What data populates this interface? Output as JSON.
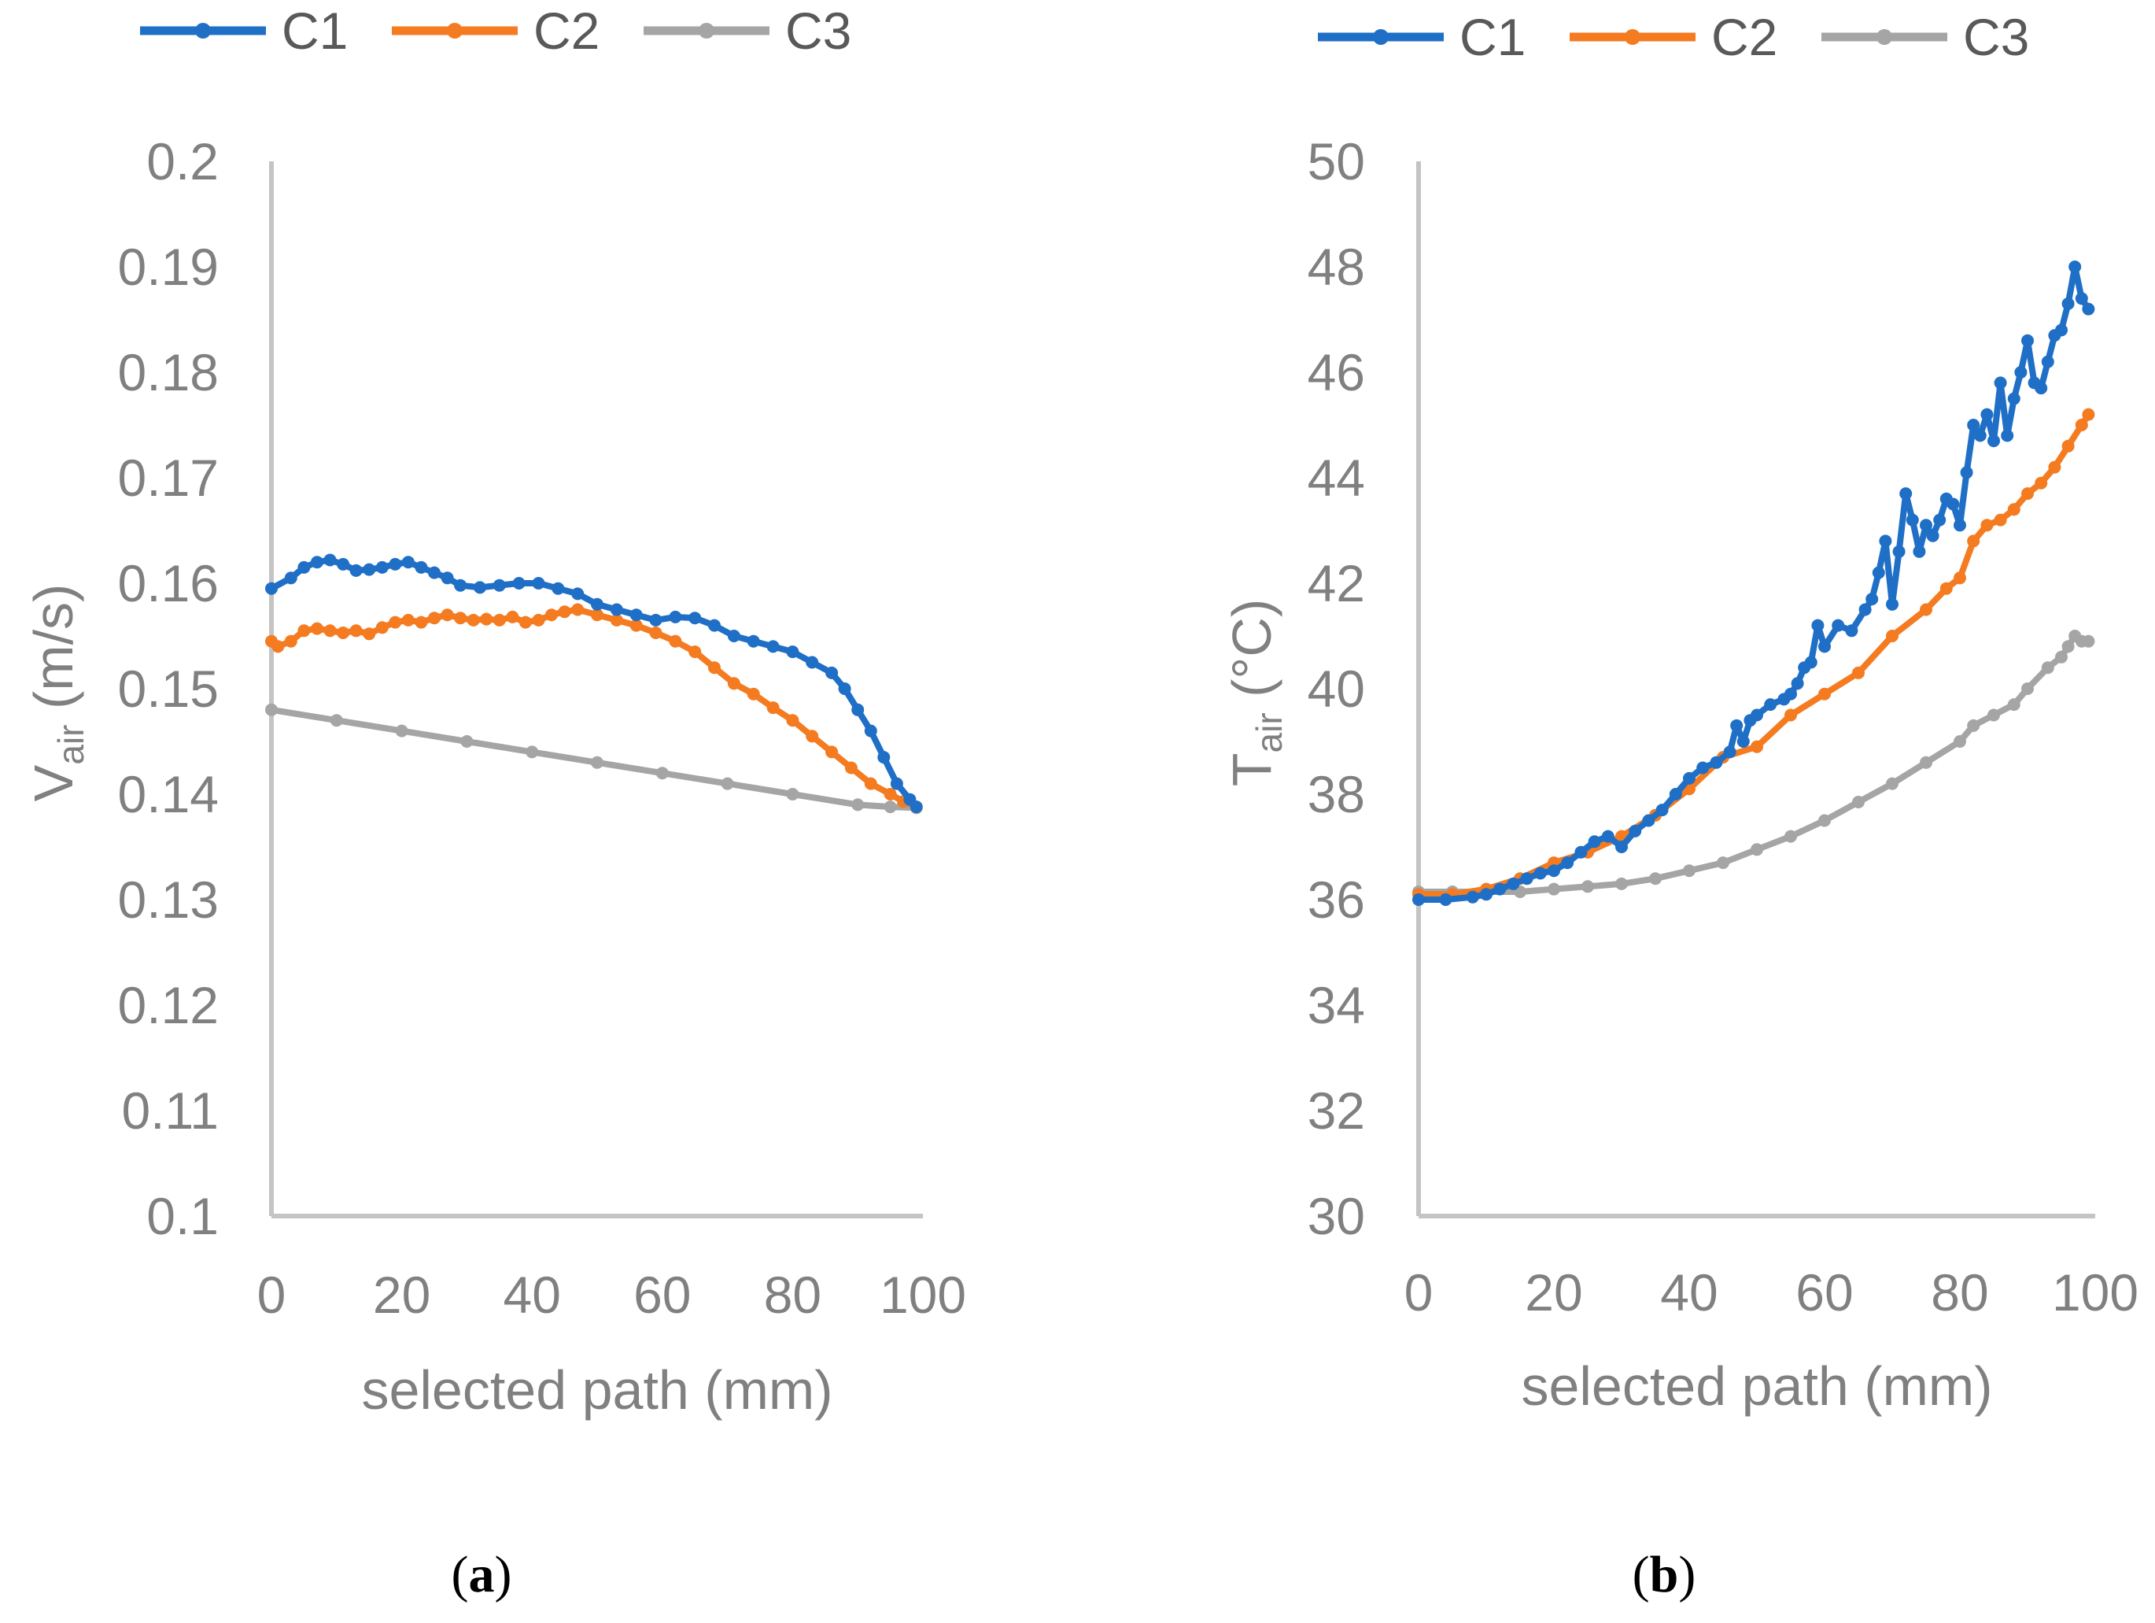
{
  "colors": {
    "C1": "#1f6fc6",
    "C2": "#f47b20",
    "C3": "#a5a5a5",
    "axis": "#c4c4c4",
    "text": "#808080"
  },
  "chart_data": [
    {
      "panel": "a",
      "type": "line",
      "caption": {
        "open": "(",
        "letter": "a",
        "close": ")"
      },
      "legend": [
        "C1",
        "C2",
        "C3"
      ],
      "xlabel": "selected path (mm)",
      "ylabel": {
        "main": "V",
        "sub": "air",
        "rest": " (m/s)"
      },
      "xlim": [
        0,
        100
      ],
      "ylim": [
        0.1,
        0.2
      ],
      "xticks": [
        "0",
        "20",
        "40",
        "60",
        "80",
        "100"
      ],
      "yticks": [
        "0.1",
        "0.11",
        "0.12",
        "0.13",
        "0.14",
        "0.15",
        "0.16",
        "0.17",
        "0.18",
        "0.19",
        "0.2"
      ],
      "series": [
        {
          "name": "C1",
          "x": [
            0,
            3,
            5,
            7,
            9,
            11,
            13,
            15,
            17,
            19,
            21,
            23,
            25,
            27,
            29,
            32,
            35,
            38,
            41,
            44,
            47,
            50,
            53,
            56,
            59,
            62,
            65,
            68,
            71,
            74,
            77,
            80,
            83,
            86,
            88,
            90,
            92,
            94,
            96,
            98,
            99
          ],
          "y": [
            0.1595,
            0.1605,
            0.1615,
            0.162,
            0.1622,
            0.1618,
            0.1612,
            0.1613,
            0.1615,
            0.1618,
            0.162,
            0.1615,
            0.161,
            0.1605,
            0.1598,
            0.1596,
            0.1598,
            0.16,
            0.16,
            0.1595,
            0.159,
            0.158,
            0.1575,
            0.157,
            0.1565,
            0.1568,
            0.1567,
            0.156,
            0.155,
            0.1545,
            0.154,
            0.1535,
            0.1525,
            0.1515,
            0.15,
            0.148,
            0.146,
            0.1435,
            0.141,
            0.1395,
            0.1388
          ]
        },
        {
          "name": "C2",
          "x": [
            0,
            1,
            3,
            5,
            7,
            9,
            11,
            13,
            15,
            17,
            19,
            21,
            23,
            25,
            27,
            29,
            31,
            33,
            35,
            37,
            39,
            41,
            43,
            45,
            47,
            50,
            53,
            56,
            59,
            62,
            65,
            68,
            71,
            74,
            77,
            80,
            83,
            86,
            89,
            92,
            95,
            97,
            99
          ],
          "y": [
            0.1545,
            0.154,
            0.1545,
            0.1555,
            0.1557,
            0.1555,
            0.1553,
            0.1555,
            0.1552,
            0.1558,
            0.1563,
            0.1565,
            0.1563,
            0.1567,
            0.157,
            0.1567,
            0.1565,
            0.1566,
            0.1565,
            0.1568,
            0.1563,
            0.1565,
            0.157,
            0.1573,
            0.1575,
            0.157,
            0.1565,
            0.156,
            0.1553,
            0.1545,
            0.1535,
            0.152,
            0.1505,
            0.1495,
            0.1482,
            0.147,
            0.1455,
            0.144,
            0.1425,
            0.141,
            0.14,
            0.1393,
            0.1388
          ]
        },
        {
          "name": "C3",
          "x": [
            0,
            10,
            20,
            30,
            40,
            50,
            60,
            70,
            80,
            90,
            95,
            99
          ],
          "y": [
            0.148,
            0.147,
            0.146,
            0.145,
            0.144,
            0.143,
            0.142,
            0.141,
            0.14,
            0.139,
            0.1388,
            0.1387
          ]
        }
      ]
    },
    {
      "panel": "b",
      "type": "line",
      "caption": {
        "open": "(",
        "letter": "b",
        "close": ")"
      },
      "legend": [
        "C1",
        "C2",
        "C3"
      ],
      "xlabel": "selected path (mm)",
      "ylabel": {
        "main": "T",
        "sub": "air",
        "rest": " (°C)"
      },
      "xlim": [
        0,
        100
      ],
      "ylim": [
        30,
        50
      ],
      "xticks": [
        "0",
        "20",
        "40",
        "60",
        "80",
        "100"
      ],
      "yticks": [
        "30",
        "32",
        "34",
        "36",
        "38",
        "40",
        "42",
        "44",
        "46",
        "48",
        "50"
      ],
      "series": [
        {
          "name": "C1",
          "x": [
            0,
            4,
            8,
            10,
            12,
            14,
            16,
            18,
            20,
            22,
            24,
            26,
            28,
            30,
            32,
            34,
            36,
            38,
            40,
            42,
            44,
            46,
            47,
            48,
            49,
            50,
            52,
            54,
            55,
            56,
            57,
            58,
            59,
            60,
            62,
            64,
            66,
            67,
            68,
            69,
            70,
            71,
            72,
            73,
            74,
            75,
            76,
            77,
            78,
            79,
            80,
            81,
            82,
            83,
            84,
            85,
            86,
            87,
            88,
            89,
            90,
            91,
            92,
            93,
            94,
            95,
            96,
            97,
            98,
            99
          ],
          "y": [
            36,
            36,
            36.05,
            36.1,
            36.2,
            36.3,
            36.4,
            36.5,
            36.55,
            36.7,
            36.9,
            37.1,
            37.2,
            37.0,
            37.3,
            37.5,
            37.7,
            38.0,
            38.3,
            38.5,
            38.6,
            38.8,
            39.3,
            39.0,
            39.4,
            39.5,
            39.7,
            39.8,
            39.9,
            40.1,
            40.4,
            40.5,
            41.2,
            40.8,
            41.2,
            41.1,
            41.5,
            41.7,
            42.2,
            42.8,
            41.6,
            42.6,
            43.7,
            43.2,
            42.6,
            43.1,
            42.9,
            43.2,
            43.6,
            43.5,
            43.1,
            44.1,
            45.0,
            44.8,
            45.2,
            44.7,
            45.8,
            44.8,
            45.5,
            46.0,
            46.6,
            45.8,
            45.7,
            46.2,
            46.7,
            46.8,
            47.3,
            48.0,
            47.4,
            47.2
          ]
        },
        {
          "name": "C2",
          "x": [
            0,
            5,
            10,
            15,
            20,
            25,
            30,
            35,
            40,
            45,
            50,
            55,
            60,
            65,
            70,
            75,
            78,
            80,
            82,
            84,
            86,
            88,
            90,
            92,
            94,
            96,
            98,
            99
          ],
          "y": [
            36.1,
            36.1,
            36.2,
            36.4,
            36.7,
            36.9,
            37.2,
            37.6,
            38.1,
            38.7,
            38.9,
            39.5,
            39.9,
            40.3,
            41.0,
            41.5,
            41.9,
            42.1,
            42.8,
            43.1,
            43.2,
            43.4,
            43.7,
            43.9,
            44.2,
            44.6,
            45.0,
            45.2
          ]
        },
        {
          "name": "C3",
          "x": [
            0,
            5,
            10,
            15,
            20,
            25,
            30,
            35,
            40,
            45,
            50,
            55,
            60,
            65,
            70,
            75,
            80,
            82,
            85,
            88,
            90,
            93,
            95,
            96,
            97,
            98,
            99
          ],
          "y": [
            36.15,
            36.15,
            36.15,
            36.15,
            36.2,
            36.25,
            36.3,
            36.4,
            36.55,
            36.7,
            36.95,
            37.2,
            37.5,
            37.85,
            38.2,
            38.6,
            39.0,
            39.3,
            39.5,
            39.7,
            40.0,
            40.4,
            40.6,
            40.8,
            41.0,
            40.9,
            40.9
          ]
        }
      ]
    }
  ]
}
